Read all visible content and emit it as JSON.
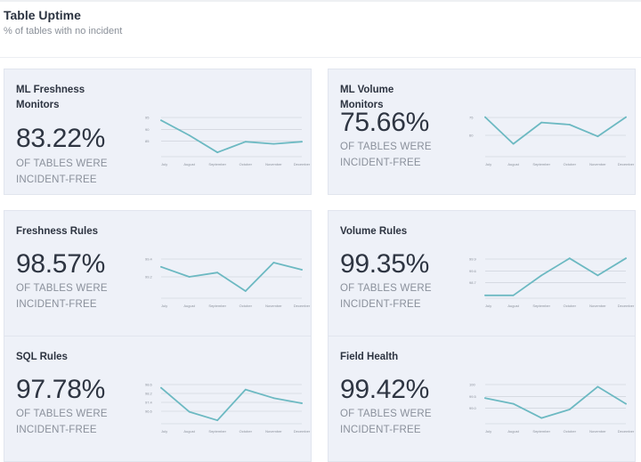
{
  "header": {
    "title": "Table Uptime",
    "subtitle": "% of tables with no incident"
  },
  "colors": {
    "card_background": "#eef1f8",
    "sparkline": "#6cb9c2",
    "muted_text": "#8a909b"
  },
  "cards": [
    {
      "title": "ML Freshness Monitors",
      "value": "83.22%",
      "caption_line1": "OF TABLES WERE",
      "caption_line2": "INCIDENT-FREE",
      "chart_data": {
        "type": "line",
        "x": [
          "July",
          "August",
          "September",
          "October",
          "November",
          "December"
        ],
        "series": [
          {
            "values": [
              97,
              90,
              82,
              87,
              86,
              87
            ]
          }
        ],
        "y_ticks": [
          "95",
          "90",
          "85"
        ],
        "ylim": [
          80,
          100
        ],
        "grid": true
      }
    },
    {
      "title": "ML Volume Monitors",
      "value": "75.66%",
      "caption_line1": "OF TABLES WERE",
      "caption_line2": "INCIDENT-FREE",
      "chart_data": {
        "type": "line",
        "x": [
          "July",
          "August",
          "September",
          "October",
          "November",
          "December"
        ],
        "series": [
          {
            "values": [
              97,
              72,
              92,
              90,
              79,
              97
            ]
          }
        ],
        "y_ticks": [
          "75",
          "60"
        ],
        "ylim": [
          60,
          100
        ],
        "grid": true
      }
    },
    {
      "title": "Freshness Rules",
      "value": "98.57%",
      "caption_line1": "OF TABLES WERE",
      "caption_line2": "INCIDENT-FREE",
      "chart_data": {
        "type": "line",
        "x": [
          "July",
          "August",
          "September",
          "October",
          "November",
          "December"
        ],
        "series": [
          {
            "values": [
              99.2,
              98.5,
              98.8,
              97.5,
              99.5,
              99.0
            ]
          }
        ],
        "y_ticks": [
          "99.4",
          "99.2"
        ],
        "ylim": [
          97,
          100
        ],
        "grid": true
      }
    },
    {
      "title": "Volume Rules",
      "value": "99.35%",
      "caption_line1": "OF TABLES WERE",
      "caption_line2": "INCIDENT-FREE",
      "chart_data": {
        "type": "line",
        "x": [
          "July",
          "August",
          "September",
          "October",
          "November",
          "December"
        ],
        "series": [
          {
            "values": [
              98.6,
              98.6,
              99.3,
              99.9,
              99.3,
              99.9
            ]
          }
        ],
        "y_ticks": [
          "99.9",
          "99.6",
          "98.7"
        ],
        "ylim": [
          98.5,
          100
        ],
        "grid": true
      }
    },
    {
      "title": "SQL Rules",
      "value": "97.78%",
      "caption_line1": "OF TABLES WERE",
      "caption_line2": "INCIDENT-FREE",
      "chart_data": {
        "type": "line",
        "x": [
          "July",
          "August",
          "September",
          "October",
          "November",
          "December"
        ],
        "series": [
          {
            "values": [
              98.6,
              97.2,
              96.7,
              98.5,
              98.0,
              97.7
            ]
          }
        ],
        "y_ticks": [
          "98.6",
          "98.2",
          "97.4",
          "96.6"
        ],
        "ylim": [
          96.5,
          99
        ],
        "grid": true
      }
    },
    {
      "title": "Field Health",
      "value": "99.42%",
      "caption_line1": "OF TABLES WERE",
      "caption_line2": "INCIDENT-FREE",
      "chart_data": {
        "type": "line",
        "x": [
          "July",
          "August",
          "September",
          "October",
          "November",
          "December"
        ],
        "series": [
          {
            "values": [
              99.4,
              99.2,
              98.7,
              99.0,
              99.8,
              99.2
            ]
          }
        ],
        "y_ticks": [
          "100",
          "99.5",
          "99.0"
        ],
        "ylim": [
          98.5,
          100
        ],
        "grid": true
      }
    }
  ]
}
